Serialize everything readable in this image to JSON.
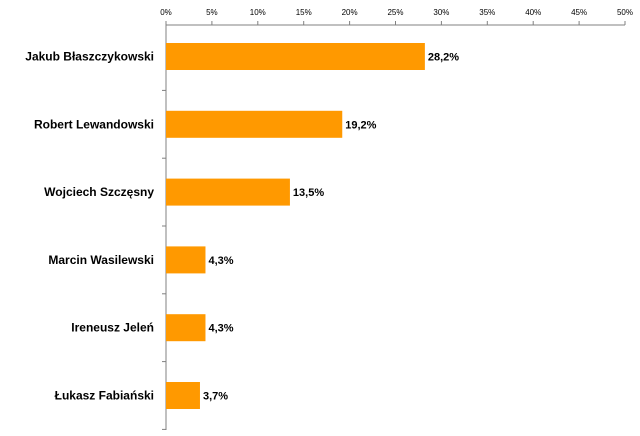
{
  "chart_data": {
    "type": "bar",
    "orientation": "horizontal",
    "title": "",
    "xlabel": "",
    "ylabel": "",
    "categories": [
      "Jakub Błaszczykowski",
      "Robert Lewandowski",
      "Wojciech Szczęsny",
      "Marcin Wasilewski",
      "Ireneusz Jeleń",
      "Łukasz Fabiański"
    ],
    "values": [
      28.2,
      19.2,
      13.5,
      4.3,
      4.3,
      3.7
    ],
    "data_labels": [
      "28,2%",
      "19,2%",
      "13,5%",
      "4,3%",
      "4,3%",
      "3,7%"
    ],
    "xlim": [
      0,
      50
    ],
    "x_ticks": [
      0,
      5,
      10,
      15,
      20,
      25,
      30,
      35,
      40,
      45,
      50
    ],
    "x_tick_labels": [
      "0%",
      "5%",
      "10%",
      "15%",
      "20%",
      "25%",
      "30%",
      "35%",
      "40%",
      "45%",
      "50%"
    ],
    "x_axis_position": "top",
    "grid": false,
    "legend": "none",
    "bar_color": "#FF9900",
    "axis_color": "#808080"
  }
}
